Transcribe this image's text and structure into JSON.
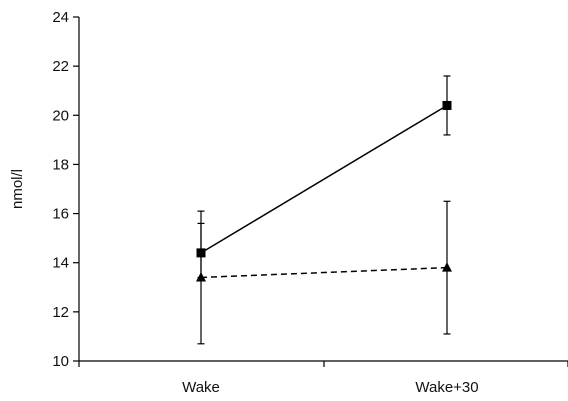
{
  "chart_data": {
    "type": "line",
    "categories": [
      "Wake",
      "Wake+30"
    ],
    "ylabel": "nmol/l",
    "xlabel": "",
    "ylim": [
      10,
      24
    ],
    "yticks": [
      10,
      12,
      14,
      16,
      18,
      20,
      22,
      24
    ],
    "grid": false,
    "series": [
      {
        "marker": "square",
        "line_style": "solid",
        "values": [
          14.4,
          20.4
        ],
        "error_upper": [
          16.1,
          21.6
        ],
        "error_lower": [
          13.4,
          19.2
        ]
      },
      {
        "marker": "triangle",
        "line_style": "dashed",
        "values": [
          13.4,
          13.8
        ],
        "error_upper": [
          15.6,
          16.5
        ],
        "error_lower": [
          10.7,
          11.1
        ]
      }
    ]
  },
  "colors": {
    "axis": "#000000",
    "series": "#000000",
    "background": "#ffffff"
  }
}
